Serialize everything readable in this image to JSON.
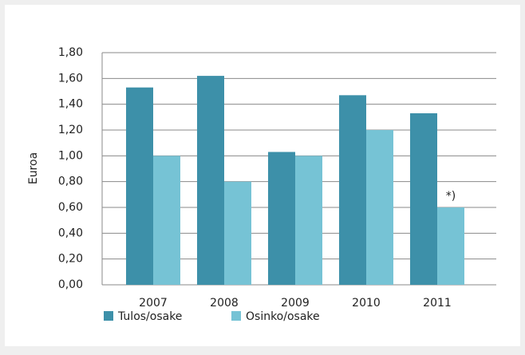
{
  "chart_data": {
    "type": "bar",
    "y_label": "Euroa",
    "categories": [
      "2007",
      "2008",
      "2009",
      "2010",
      "2011"
    ],
    "series": [
      {
        "name": "Tulos/osake",
        "color": "#3d90a9",
        "values": [
          1.53,
          1.62,
          1.03,
          1.47,
          1.33
        ]
      },
      {
        "name": "Osinko/osake",
        "color": "#76c3d5",
        "values": [
          1.0,
          0.8,
          1.0,
          1.2,
          0.6
        ]
      }
    ],
    "annotations": [
      {
        "text": "*)"
      }
    ],
    "ylim": [
      0,
      1.8
    ],
    "yticks": [
      {
        "value": 0,
        "label": "0,00"
      },
      {
        "value": 0.2,
        "label": "0,20"
      },
      {
        "value": 0.4,
        "label": "0,40"
      },
      {
        "value": 0.6,
        "label": "0,60"
      },
      {
        "value": 0.8,
        "label": "0,80"
      },
      {
        "value": 1.0,
        "label": "1,00"
      },
      {
        "value": 1.2,
        "label": "1,20"
      },
      {
        "value": 1.4,
        "label": "1,40"
      },
      {
        "value": 1.6,
        "label": "1,60"
      },
      {
        "value": 1.8,
        "label": "1,80"
      }
    ],
    "grid": true,
    "legend": "bottom"
  }
}
